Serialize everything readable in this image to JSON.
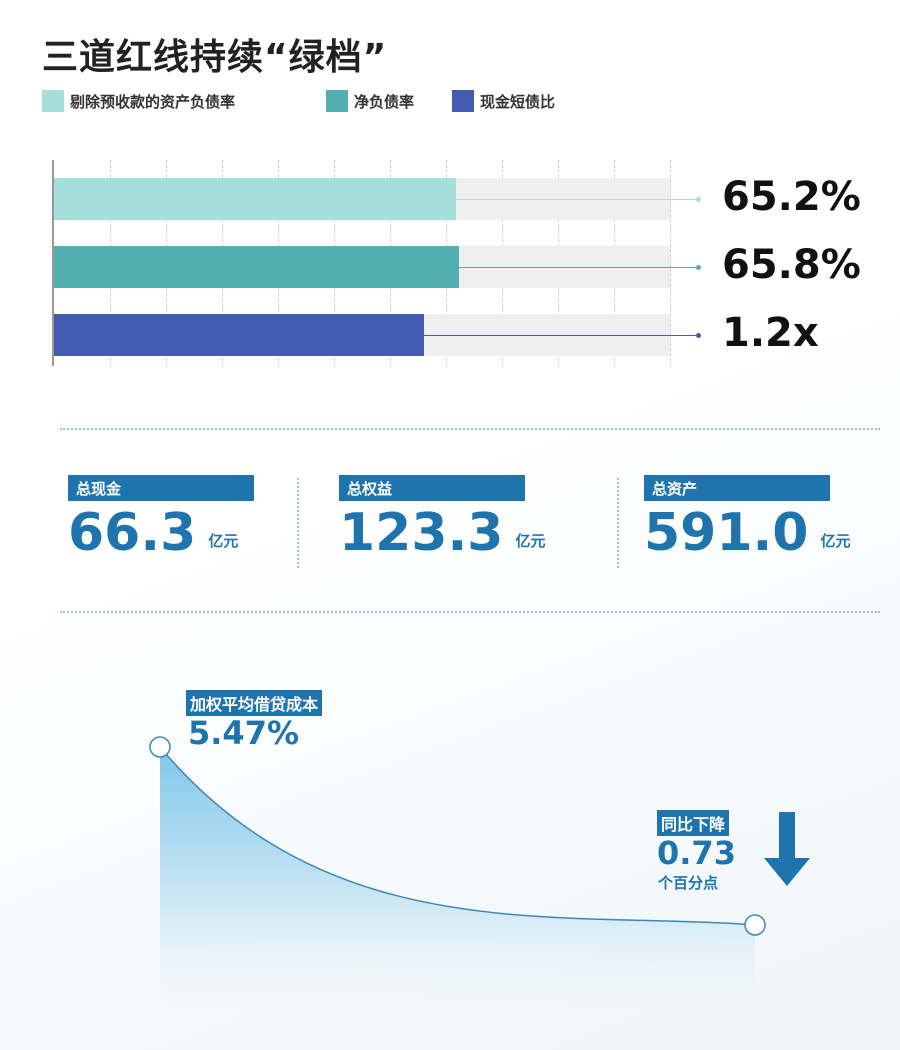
{
  "title": "三道红线持续“绿档”",
  "chart_data": {
    "type": "bar",
    "orientation": "horizontal",
    "grid": true,
    "legend_placement": "top-left",
    "series": [
      {
        "name": "剔除预收款的资产负债率",
        "value": 65.2,
        "label": "65.2%",
        "max": 100,
        "color": "#a6dedb"
      },
      {
        "name": "净负债率",
        "value": 65.8,
        "label": "65.8%",
        "max": 100,
        "color": "#52b0b0"
      },
      {
        "name": "现金短债比",
        "value": 1.2,
        "label": "1.2x",
        "max": 2,
        "color": "#425bb0"
      }
    ]
  },
  "stats": [
    {
      "label": "总现金",
      "value": "66.3",
      "unit": "亿元"
    },
    {
      "label": "总权益",
      "value": "123.3",
      "unit": "亿元"
    },
    {
      "label": "总资产",
      "value": "591.0",
      "unit": "亿元"
    }
  ],
  "cost": {
    "label": "加权平均借贷成本",
    "value": "5.47%",
    "change_label": "同比下降",
    "change_value": "0.73",
    "change_unit": "个百分点",
    "arrow_icon": "arrow-down-icon",
    "accent": "#1f74ae"
  }
}
